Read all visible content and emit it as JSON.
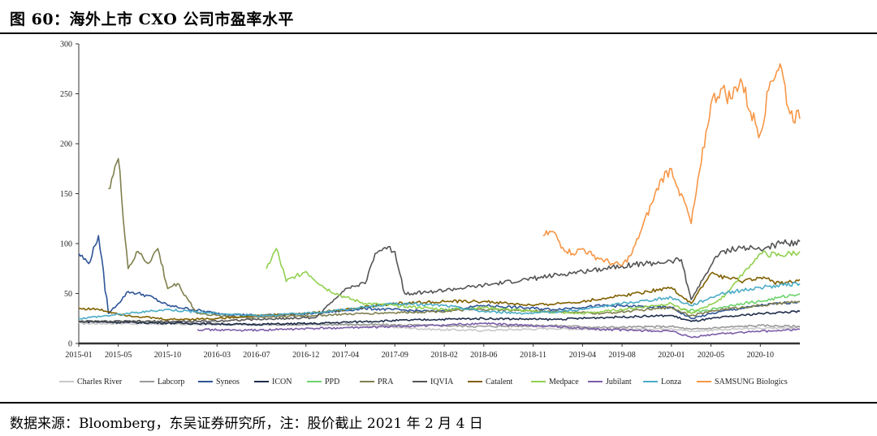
{
  "header": {
    "title": "图 60：海外上市 CXO 公司市盈率水平"
  },
  "footer": {
    "source": "数据来源：Bloomberg，东吴证券研究所，注：股价截止 2021 年 2 月 4 日"
  },
  "chart_data": {
    "type": "line",
    "title": "",
    "xlabel": "",
    "ylabel": "",
    "ylim": [
      0,
      300
    ],
    "yticks": [
      0,
      50,
      100,
      150,
      200,
      250,
      300
    ],
    "x_range": [
      "2015-01",
      "2021-02"
    ],
    "x_ticks": [
      "2015-01",
      "2015-05",
      "2015-10",
      "2016-03",
      "2016-07",
      "2016-12",
      "2017-04",
      "2017-09",
      "2018-02",
      "2018-06",
      "2018-11",
      "2019-04",
      "2019-08",
      "2020-01",
      "2020-05",
      "2020-10"
    ],
    "legend_position": "bottom",
    "grid": false,
    "series": [
      {
        "name": "Charles River",
        "color": "#c8c8c8",
        "x": [
          "2015-01",
          "2015-06",
          "2016-01",
          "2016-06",
          "2017-01",
          "2017-06",
          "2018-01",
          "2018-06",
          "2019-01",
          "2019-06",
          "2020-01",
          "2020-03",
          "2020-06",
          "2020-10",
          "2021-02"
        ],
        "values": [
          20,
          20,
          19,
          19,
          19,
          18,
          14,
          13,
          15,
          14,
          15,
          12,
          14,
          15,
          16
        ]
      },
      {
        "name": "Labcorp",
        "color": "#9a9a9a",
        "x": [
          "2015-01",
          "2015-06",
          "2016-01",
          "2016-06",
          "2017-01",
          "2017-06",
          "2018-01",
          "2018-06",
          "2019-01",
          "2019-06",
          "2020-01",
          "2020-03",
          "2020-06",
          "2020-10",
          "2021-02"
        ],
        "values": [
          22,
          22,
          20,
          19,
          19,
          19,
          18,
          17,
          18,
          16,
          17,
          14,
          16,
          18,
          17
        ]
      },
      {
        "name": "Syneos",
        "color": "#2f5597",
        "x": [
          "2015-01",
          "2015-02",
          "2015-03",
          "2015-04",
          "2015-05",
          "2015-06",
          "2015-08",
          "2015-10",
          "2016-03",
          "2016-07",
          "2017-01",
          "2017-06",
          "2018-01",
          "2018-06",
          "2019-01",
          "2019-06",
          "2020-01",
          "2020-03",
          "2020-06",
          "2020-10",
          "2021-02"
        ],
        "values": [
          90,
          80,
          108,
          30,
          40,
          52,
          48,
          38,
          30,
          28,
          30,
          35,
          32,
          38,
          34,
          38,
          36,
          25,
          32,
          38,
          42
        ]
      },
      {
        "name": "ICON",
        "color": "#1f2d4a",
        "x": [
          "2015-01",
          "2015-06",
          "2016-01",
          "2016-06",
          "2017-01",
          "2017-06",
          "2018-01",
          "2018-06",
          "2019-01",
          "2019-06",
          "2020-01",
          "2020-03",
          "2020-06",
          "2020-10",
          "2021-02"
        ],
        "values": [
          22,
          21,
          20,
          19,
          20,
          22,
          24,
          25,
          24,
          26,
          28,
          22,
          26,
          30,
          32
        ]
      },
      {
        "name": "PPD",
        "color": "#6bd36b",
        "x": [
          "2020-02",
          "2020-04",
          "2020-06",
          "2020-08",
          "2020-10",
          "2020-12",
          "2021-02"
        ],
        "values": [
          34,
          32,
          36,
          40,
          42,
          46,
          50
        ]
      },
      {
        "name": "PRA",
        "color": "#7f7f4f",
        "x": [
          "2015-04",
          "2015-05",
          "2015-06",
          "2015-07",
          "2015-08",
          "2015-09",
          "2015-10",
          "2015-11",
          "2016-01",
          "2016-03",
          "2016-06",
          "2017-01",
          "2017-06",
          "2018-01",
          "2018-06",
          "2019-01",
          "2019-06",
          "2020-01",
          "2020-03",
          "2020-06",
          "2020-10",
          "2021-02"
        ],
        "values": [
          155,
          185,
          75,
          92,
          80,
          95,
          55,
          60,
          30,
          28,
          26,
          28,
          30,
          32,
          34,
          32,
          30,
          36,
          28,
          34,
          38,
          42
        ]
      },
      {
        "name": "IQVIA",
        "color": "#555555",
        "x": [
          "2015-01",
          "2016-01",
          "2017-01",
          "2017-04",
          "2017-06",
          "2017-07",
          "2017-08",
          "2017-09",
          "2017-10",
          "2018-01",
          "2018-06",
          "2018-11",
          "2019-04",
          "2019-08",
          "2020-01",
          "2020-02",
          "2020-03",
          "2020-05",
          "2020-06",
          "2020-08",
          "2020-10",
          "2020-12",
          "2021-02"
        ],
        "values": [
          22,
          22,
          26,
          55,
          60,
          90,
          96,
          92,
          50,
          52,
          58,
          65,
          72,
          78,
          82,
          84,
          44,
          78,
          92,
          96,
          94,
          100,
          102
        ]
      },
      {
        "name": "Catalent",
        "color": "#7f6000",
        "x": [
          "2015-01",
          "2015-03",
          "2015-06",
          "2015-10",
          "2016-03",
          "2016-07",
          "2016-12",
          "2017-04",
          "2017-09",
          "2018-02",
          "2018-06",
          "2018-11",
          "2019-04",
          "2019-08",
          "2020-01",
          "2020-03",
          "2020-05",
          "2020-08",
          "2020-10",
          "2020-12",
          "2021-02"
        ],
        "values": [
          35,
          34,
          28,
          24,
          25,
          28,
          30,
          34,
          40,
          42,
          42,
          38,
          42,
          48,
          56,
          40,
          70,
          62,
          66,
          60,
          64
        ]
      },
      {
        "name": "Medpace",
        "color": "#92d050",
        "x": [
          "2016-08",
          "2016-09",
          "2016-10",
          "2016-11",
          "2016-12",
          "2017-02",
          "2017-04",
          "2017-06",
          "2017-09",
          "2018-02",
          "2018-06",
          "2018-11",
          "2019-04",
          "2019-08",
          "2020-01",
          "2020-03",
          "2020-06",
          "2020-10",
          "2020-12",
          "2021-02"
        ],
        "values": [
          75,
          95,
          62,
          68,
          72,
          55,
          46,
          40,
          38,
          34,
          36,
          32,
          30,
          34,
          40,
          30,
          44,
          90,
          88,
          92
        ]
      },
      {
        "name": "Jubilant",
        "color": "#7b5ea7",
        "x": [
          "2016-01",
          "2016-06",
          "2017-01",
          "2017-06",
          "2018-01",
          "2018-06",
          "2019-01",
          "2019-06",
          "2020-01",
          "2020-03",
          "2020-06",
          "2020-10",
          "2021-02"
        ],
        "values": [
          14,
          13,
          15,
          16,
          18,
          20,
          17,
          14,
          12,
          6,
          10,
          12,
          14
        ]
      },
      {
        "name": "Lonza",
        "color": "#4bacc6",
        "x": [
          "2015-01",
          "2015-06",
          "2015-10",
          "2016-03",
          "2016-07",
          "2016-12",
          "2017-04",
          "2017-09",
          "2018-02",
          "2018-06",
          "2018-11",
          "2019-04",
          "2019-08",
          "2020-01",
          "2020-03",
          "2020-06",
          "2020-10",
          "2021-02"
        ],
        "values": [
          25,
          30,
          34,
          30,
          28,
          30,
          34,
          40,
          38,
          32,
          30,
          34,
          40,
          46,
          38,
          50,
          56,
          60
        ]
      },
      {
        "name": "SAMSUNG Biologics",
        "color": "#f79646",
        "x": [
          "2018-12",
          "2019-01",
          "2019-02",
          "2019-03",
          "2019-04",
          "2019-05",
          "2019-06",
          "2019-07",
          "2019-08",
          "2019-09",
          "2019-10",
          "2019-11",
          "2019-12",
          "2020-01",
          "2020-02",
          "2020-03",
          "2020-04",
          "2020-05",
          "2020-06",
          "2020-07",
          "2020-08",
          "2020-09",
          "2020-10",
          "2020-11",
          "2020-12",
          "2021-01",
          "2021-02"
        ],
        "values": [
          108,
          112,
          96,
          90,
          95,
          88,
          84,
          80,
          78,
          90,
          115,
          140,
          165,
          175,
          150,
          120,
          180,
          240,
          255,
          245,
          265,
          232,
          210,
          262,
          280,
          230,
          225
        ]
      }
    ]
  }
}
